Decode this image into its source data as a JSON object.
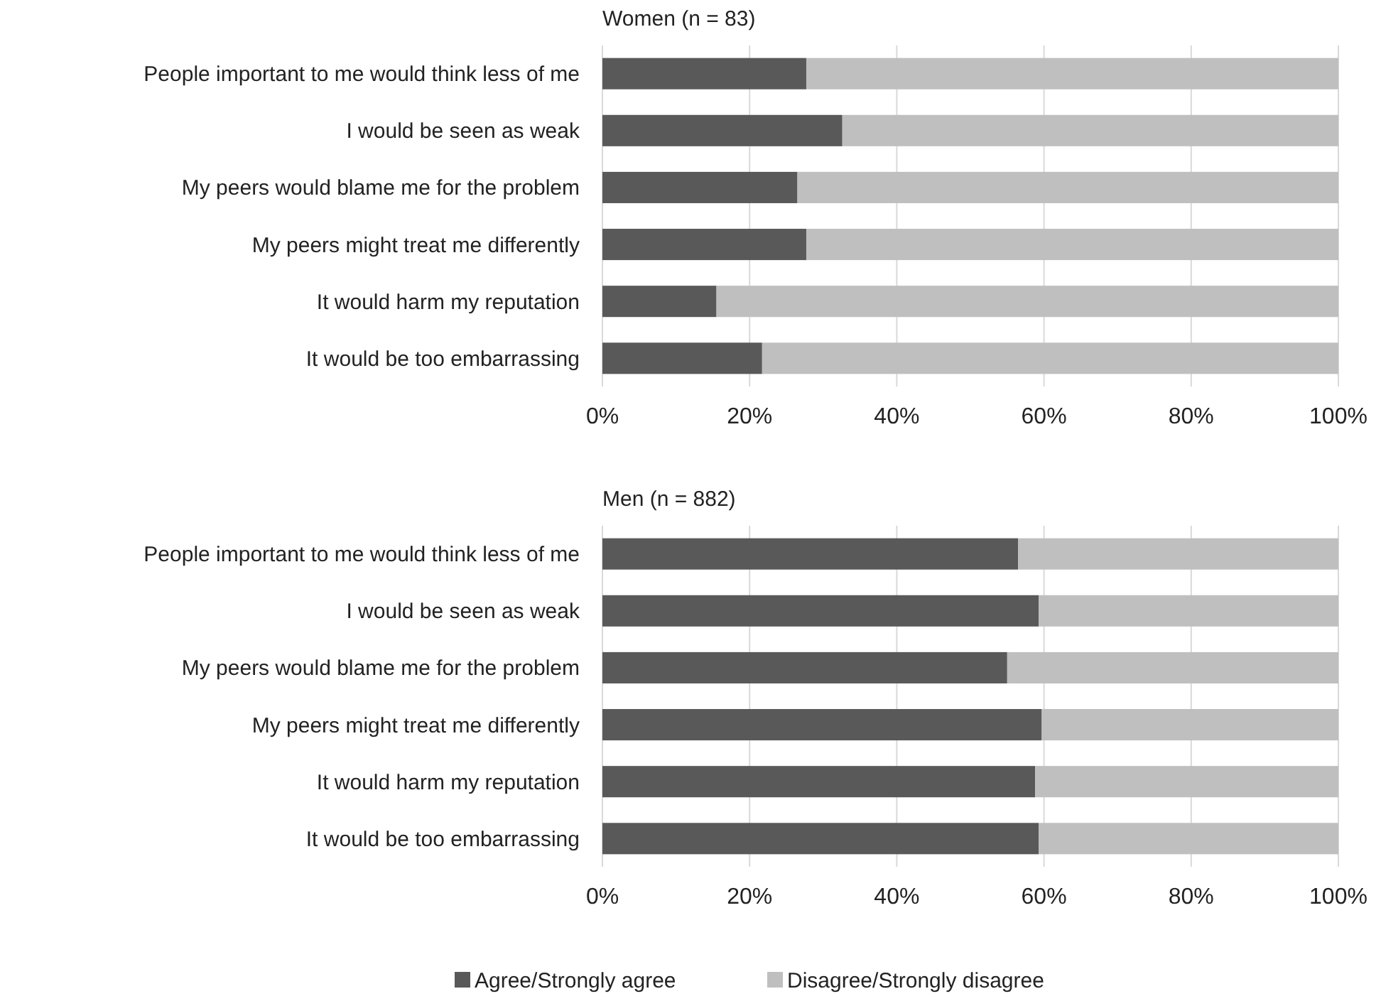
{
  "chart_data": [
    {
      "type": "bar",
      "orientation": "horizontal",
      "stacked": true,
      "title": "Women (n = 83)",
      "categories": [
        "People important to me would think less of me",
        "I would be seen as weak",
        "My peers would blame me for the problem",
        "My peers might treat me differently",
        "It would harm my reputation",
        "It would be too embarrassing"
      ],
      "series": [
        {
          "color": "#595959",
          "values": [
            27.7,
            32.6,
            26.5,
            27.7,
            15.5,
            21.7
          ]
        },
        {
          "color": "#bfbfbf",
          "values": [
            72.3,
            67.4,
            73.5,
            72.3,
            84.5,
            78.3
          ]
        }
      ],
      "xlim": [
        0,
        100
      ],
      "xticks": [
        {
          "value": 0,
          "label": "0%"
        },
        {
          "value": 20,
          "label": "20%"
        },
        {
          "value": 40,
          "label": "40%"
        },
        {
          "value": 60,
          "label": "60%"
        },
        {
          "value": 80,
          "label": "80%"
        },
        {
          "value": 100,
          "label": "100%"
        }
      ],
      "grid": "x",
      "legend": false
    },
    {
      "type": "bar",
      "orientation": "horizontal",
      "stacked": true,
      "title": "Men (n = 882)",
      "categories": [
        "People important to me would think less of me",
        "I would be seen as weak",
        "My peers would blame me for the problem",
        "My peers might treat me differently",
        "It would harm my reputation",
        "It would be too embarrassing"
      ],
      "series": [
        {
          "name": "Agree/Strongly agree",
          "color": "#595959",
          "values": [
            56.5,
            59.3,
            55,
            59.7,
            58.8,
            59.3
          ]
        },
        {
          "name": "Disagree/Strongly disagree",
          "color": "#bfbfbf",
          "values": [
            43.5,
            40.7,
            45,
            40.3,
            41.2,
            40.7
          ]
        }
      ],
      "xlim": [
        0,
        100
      ],
      "xticks": [
        {
          "value": 0,
          "label": "0%"
        },
        {
          "value": 20,
          "label": "20%"
        },
        {
          "value": 40,
          "label": "40%"
        },
        {
          "value": 60,
          "label": "60%"
        },
        {
          "value": 80,
          "label": "80%"
        },
        {
          "value": 100,
          "label": "100%"
        }
      ],
      "grid": "x",
      "legend": "bottom"
    }
  ]
}
